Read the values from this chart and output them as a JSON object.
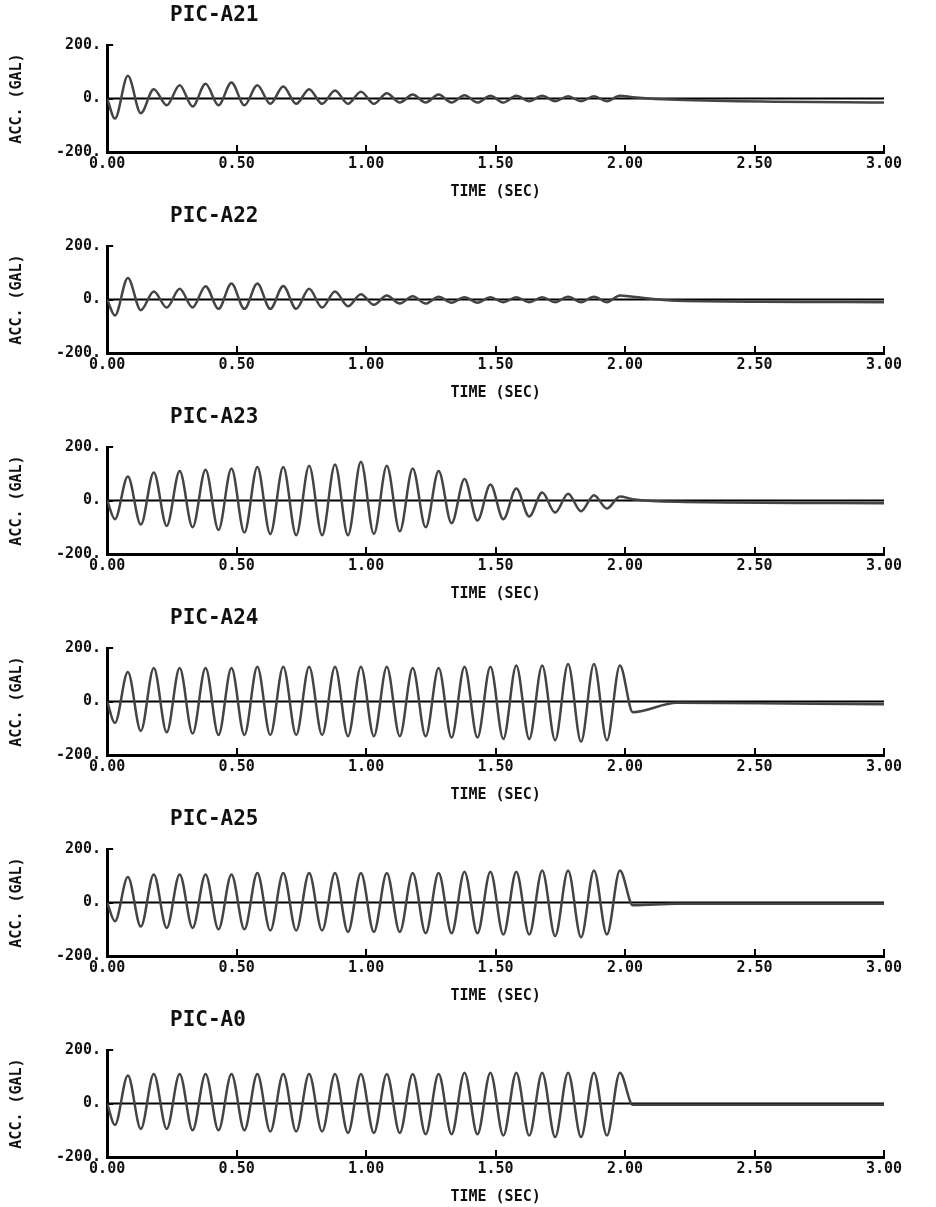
{
  "chart_data": [
    {
      "type": "line",
      "title": "PIC-A21",
      "xlabel": "TIME (SEC)",
      "ylabel": "ACC. (GAL)",
      "xlim": [
        0,
        3
      ],
      "ylim": [
        -200,
        200
      ],
      "xticks": [
        {
          "value": 0,
          "label": "0.00"
        },
        {
          "value": 0.5,
          "label": "0.50"
        },
        {
          "value": 1,
          "label": "1.00"
        },
        {
          "value": 1.5,
          "label": "1.50"
        },
        {
          "value": 2,
          "label": "2.00"
        },
        {
          "value": 2.5,
          "label": "2.50"
        },
        {
          "value": 3,
          "label": "3.00"
        }
      ],
      "yticks": [
        {
          "value": -200,
          "label": "-200."
        },
        {
          "value": 0,
          "label": "0."
        },
        {
          "value": 200,
          "label": "200."
        }
      ],
      "grid": false,
      "marker": "none",
      "line_style": "solid",
      "ref_lines": [
        {
          "axis": "y",
          "value": 0,
          "color": "#000000"
        }
      ],
      "series": [
        {
          "color": "#444444",
          "x": [
            0,
            0.03,
            0.08,
            0.13,
            0.18,
            0.23,
            0.28,
            0.33,
            0.38,
            0.43,
            0.48,
            0.53,
            0.58,
            0.63,
            0.68,
            0.73,
            0.78,
            0.83,
            0.88,
            0.93,
            0.98,
            1.03,
            1.08,
            1.13,
            1.18,
            1.23,
            1.28,
            1.33,
            1.38,
            1.43,
            1.48,
            1.53,
            1.58,
            1.63,
            1.68,
            1.73,
            1.78,
            1.83,
            1.88,
            1.93,
            1.98,
            2.03,
            2.2,
            3.0
          ],
          "values": [
            0,
            -75,
            85,
            -55,
            35,
            -25,
            50,
            -30,
            55,
            -25,
            60,
            -25,
            50,
            -20,
            45,
            -20,
            35,
            -20,
            30,
            -20,
            25,
            -20,
            20,
            -15,
            15,
            -15,
            15,
            -15,
            12,
            -15,
            10,
            -15,
            10,
            -10,
            10,
            -10,
            8,
            -10,
            8,
            -10,
            10,
            5,
            -5,
            -15
          ]
        }
      ]
    },
    {
      "type": "line",
      "title": "PIC-A22",
      "xlabel": "TIME (SEC)",
      "ylabel": "ACC. (GAL)",
      "xlim": [
        0,
        3
      ],
      "ylim": [
        -200,
        200
      ],
      "xticks": [
        {
          "value": 0,
          "label": "0.00"
        },
        {
          "value": 0.5,
          "label": "0.50"
        },
        {
          "value": 1,
          "label": "1.00"
        },
        {
          "value": 1.5,
          "label": "1.50"
        },
        {
          "value": 2,
          "label": "2.00"
        },
        {
          "value": 2.5,
          "label": "2.50"
        },
        {
          "value": 3,
          "label": "3.00"
        }
      ],
      "yticks": [
        {
          "value": -200,
          "label": "-200."
        },
        {
          "value": 0,
          "label": "0."
        },
        {
          "value": 200,
          "label": "200."
        }
      ],
      "grid": false,
      "marker": "none",
      "line_style": "solid",
      "ref_lines": [
        {
          "axis": "y",
          "value": 0,
          "color": "#000000"
        }
      ],
      "series": [
        {
          "color": "#444444",
          "x": [
            0,
            0.03,
            0.08,
            0.13,
            0.18,
            0.23,
            0.28,
            0.33,
            0.38,
            0.43,
            0.48,
            0.53,
            0.58,
            0.63,
            0.68,
            0.73,
            0.78,
            0.83,
            0.88,
            0.93,
            0.98,
            1.03,
            1.08,
            1.13,
            1.18,
            1.23,
            1.28,
            1.33,
            1.38,
            1.43,
            1.48,
            1.53,
            1.58,
            1.63,
            1.68,
            1.73,
            1.78,
            1.83,
            1.88,
            1.93,
            1.98,
            2.03,
            2.2,
            3.0
          ],
          "values": [
            0,
            -60,
            80,
            -40,
            30,
            -30,
            40,
            -30,
            50,
            -35,
            60,
            -35,
            60,
            -35,
            50,
            -35,
            40,
            -30,
            30,
            -25,
            20,
            -20,
            15,
            -15,
            12,
            -15,
            10,
            -12,
            8,
            -12,
            8,
            -10,
            8,
            -10,
            8,
            -10,
            10,
            -10,
            10,
            -10,
            15,
            10,
            -5,
            -10
          ]
        }
      ]
    },
    {
      "type": "line",
      "title": "PIC-A23",
      "xlabel": "TIME (SEC)",
      "ylabel": "ACC. (GAL)",
      "xlim": [
        0,
        3
      ],
      "ylim": [
        -200,
        200
      ],
      "xticks": [
        {
          "value": 0,
          "label": "0.00"
        },
        {
          "value": 0.5,
          "label": "0.50"
        },
        {
          "value": 1,
          "label": "1.00"
        },
        {
          "value": 1.5,
          "label": "1.50"
        },
        {
          "value": 2,
          "label": "2.00"
        },
        {
          "value": 2.5,
          "label": "2.50"
        },
        {
          "value": 3,
          "label": "3.00"
        }
      ],
      "yticks": [
        {
          "value": -200,
          "label": "-200."
        },
        {
          "value": 0,
          "label": "0."
        },
        {
          "value": 200,
          "label": "200."
        }
      ],
      "grid": false,
      "marker": "none",
      "line_style": "solid",
      "ref_lines": [
        {
          "axis": "y",
          "value": 0,
          "color": "#000000"
        }
      ],
      "series": [
        {
          "color": "#444444",
          "x": [
            0,
            0.03,
            0.08,
            0.13,
            0.18,
            0.23,
            0.28,
            0.33,
            0.38,
            0.43,
            0.48,
            0.53,
            0.58,
            0.63,
            0.68,
            0.73,
            0.78,
            0.83,
            0.88,
            0.93,
            0.98,
            1.03,
            1.08,
            1.13,
            1.18,
            1.23,
            1.28,
            1.33,
            1.38,
            1.43,
            1.48,
            1.53,
            1.58,
            1.63,
            1.68,
            1.73,
            1.78,
            1.83,
            1.88,
            1.93,
            1.98,
            2.03,
            2.2,
            3.0
          ],
          "values": [
            0,
            -70,
            90,
            -90,
            105,
            -95,
            110,
            -100,
            115,
            -110,
            120,
            -120,
            125,
            -125,
            125,
            -130,
            130,
            -130,
            135,
            -130,
            145,
            -125,
            130,
            -115,
            120,
            -100,
            110,
            -85,
            80,
            -75,
            60,
            -70,
            45,
            -60,
            30,
            -45,
            25,
            -40,
            20,
            -30,
            15,
            5,
            -5,
            -10
          ]
        }
      ]
    },
    {
      "type": "line",
      "title": "PIC-A24",
      "xlabel": "TIME (SEC)",
      "ylabel": "ACC. (GAL)",
      "xlim": [
        0,
        3
      ],
      "ylim": [
        -200,
        200
      ],
      "xticks": [
        {
          "value": 0,
          "label": "0.00"
        },
        {
          "value": 0.5,
          "label": "0.50"
        },
        {
          "value": 1,
          "label": "1.00"
        },
        {
          "value": 1.5,
          "label": "1.50"
        },
        {
          "value": 2,
          "label": "2.00"
        },
        {
          "value": 2.5,
          "label": "2.50"
        },
        {
          "value": 3,
          "label": "3.00"
        }
      ],
      "yticks": [
        {
          "value": -200,
          "label": "-200."
        },
        {
          "value": 0,
          "label": "0."
        },
        {
          "value": 200,
          "label": "200."
        }
      ],
      "grid": false,
      "marker": "none",
      "line_style": "solid",
      "ref_lines": [
        {
          "axis": "y",
          "value": 0,
          "color": "#000000"
        }
      ],
      "series": [
        {
          "color": "#444444",
          "x": [
            0,
            0.03,
            0.08,
            0.13,
            0.18,
            0.23,
            0.28,
            0.33,
            0.38,
            0.43,
            0.48,
            0.53,
            0.58,
            0.63,
            0.68,
            0.73,
            0.78,
            0.83,
            0.88,
            0.93,
            0.98,
            1.03,
            1.08,
            1.13,
            1.18,
            1.23,
            1.28,
            1.33,
            1.38,
            1.43,
            1.48,
            1.53,
            1.58,
            1.63,
            1.68,
            1.73,
            1.78,
            1.83,
            1.88,
            1.93,
            1.98,
            2.03,
            2.2,
            3.0
          ],
          "values": [
            0,
            -80,
            110,
            -110,
            125,
            -115,
            125,
            -120,
            125,
            -125,
            125,
            -125,
            130,
            -125,
            130,
            -125,
            130,
            -125,
            130,
            -130,
            130,
            -130,
            130,
            -130,
            125,
            -130,
            125,
            -135,
            130,
            -135,
            130,
            -140,
            135,
            -140,
            135,
            -145,
            140,
            -150,
            140,
            -145,
            135,
            -40,
            -5,
            -10
          ]
        }
      ]
    },
    {
      "type": "line",
      "title": "PIC-A25",
      "xlabel": "TIME (SEC)",
      "ylabel": "ACC. (GAL)",
      "xlim": [
        0,
        3
      ],
      "ylim": [
        -200,
        200
      ],
      "xticks": [
        {
          "value": 0,
          "label": "0.00"
        },
        {
          "value": 0.5,
          "label": "0.50"
        },
        {
          "value": 1,
          "label": "1.00"
        },
        {
          "value": 1.5,
          "label": "1.50"
        },
        {
          "value": 2,
          "label": "2.00"
        },
        {
          "value": 2.5,
          "label": "2.50"
        },
        {
          "value": 3,
          "label": "3.00"
        }
      ],
      "yticks": [
        {
          "value": -200,
          "label": "-200."
        },
        {
          "value": 0,
          "label": "0."
        },
        {
          "value": 200,
          "label": "200."
        }
      ],
      "grid": false,
      "marker": "none",
      "line_style": "solid",
      "ref_lines": [
        {
          "axis": "y",
          "value": 0,
          "color": "#000000"
        }
      ],
      "series": [
        {
          "color": "#444444",
          "x": [
            0,
            0.03,
            0.08,
            0.13,
            0.18,
            0.23,
            0.28,
            0.33,
            0.38,
            0.43,
            0.48,
            0.53,
            0.58,
            0.63,
            0.68,
            0.73,
            0.78,
            0.83,
            0.88,
            0.93,
            0.98,
            1.03,
            1.08,
            1.13,
            1.18,
            1.23,
            1.28,
            1.33,
            1.38,
            1.43,
            1.48,
            1.53,
            1.58,
            1.63,
            1.68,
            1.73,
            1.78,
            1.83,
            1.88,
            1.93,
            1.98,
            2.03,
            2.2,
            3.0
          ],
          "values": [
            0,
            -70,
            95,
            -90,
            105,
            -95,
            105,
            -95,
            105,
            -100,
            105,
            -100,
            110,
            -105,
            110,
            -105,
            110,
            -105,
            110,
            -110,
            110,
            -110,
            110,
            -110,
            110,
            -115,
            110,
            -115,
            115,
            -115,
            115,
            -120,
            115,
            -120,
            120,
            -125,
            120,
            -130,
            120,
            -120,
            120,
            -10,
            -5,
            -5
          ]
        }
      ]
    },
    {
      "type": "line",
      "title": "PIC-A0",
      "xlabel": "TIME (SEC)",
      "ylabel": "ACC. (GAL)",
      "xlim": [
        0,
        3
      ],
      "ylim": [
        -200,
        200
      ],
      "xticks": [
        {
          "value": 0,
          "label": "0.00"
        },
        {
          "value": 0.5,
          "label": "0.50"
        },
        {
          "value": 1,
          "label": "1.00"
        },
        {
          "value": 1.5,
          "label": "1.50"
        },
        {
          "value": 2,
          "label": "2.00"
        },
        {
          "value": 2.5,
          "label": "2.50"
        },
        {
          "value": 3,
          "label": "3.00"
        }
      ],
      "yticks": [
        {
          "value": -200,
          "label": "-200."
        },
        {
          "value": 0,
          "label": "0."
        },
        {
          "value": 200,
          "label": "200."
        }
      ],
      "grid": false,
      "marker": "none",
      "line_style": "solid",
      "ref_lines": [
        {
          "axis": "y",
          "value": 0,
          "color": "#000000"
        }
      ],
      "series": [
        {
          "color": "#444444",
          "x": [
            0,
            0.03,
            0.08,
            0.13,
            0.18,
            0.23,
            0.28,
            0.33,
            0.38,
            0.43,
            0.48,
            0.53,
            0.58,
            0.63,
            0.68,
            0.73,
            0.78,
            0.83,
            0.88,
            0.93,
            0.98,
            1.03,
            1.08,
            1.13,
            1.18,
            1.23,
            1.28,
            1.33,
            1.38,
            1.43,
            1.48,
            1.53,
            1.58,
            1.63,
            1.68,
            1.73,
            1.78,
            1.83,
            1.88,
            1.93,
            1.98,
            2.03,
            2.2,
            3.0
          ],
          "values": [
            0,
            -80,
            105,
            -95,
            110,
            -95,
            110,
            -100,
            110,
            -100,
            110,
            -100,
            110,
            -105,
            110,
            -105,
            110,
            -105,
            110,
            -110,
            110,
            -110,
            110,
            -110,
            110,
            -115,
            110,
            -115,
            115,
            -115,
            115,
            -120,
            115,
            -120,
            115,
            -125,
            115,
            -125,
            115,
            -120,
            115,
            -5,
            -5,
            -5
          ]
        }
      ]
    }
  ]
}
